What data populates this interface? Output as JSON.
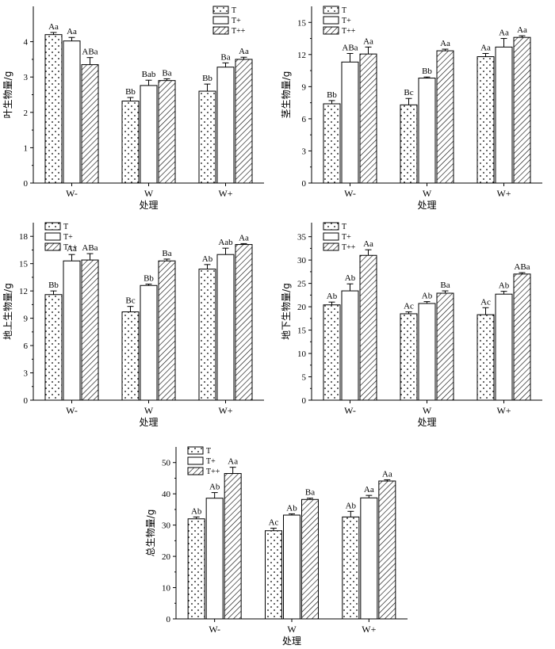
{
  "chart_data": [
    {
      "type": "bar",
      "ylabel": "叶生物量/g",
      "xlabel": "处理",
      "ylim": [
        0,
        5
      ],
      "yticks": [
        0,
        1,
        2,
        3,
        4
      ],
      "categories": [
        "W-",
        "W",
        "W+"
      ],
      "legend_position": "top-right",
      "series": [
        {
          "name": "T",
          "values": [
            4.2,
            2.32,
            2.6
          ],
          "errors": [
            0.06,
            0.1,
            0.2
          ],
          "labels": [
            "Aa",
            "Bb",
            "Bb"
          ]
        },
        {
          "name": "T+",
          "values": [
            4.02,
            2.76,
            3.28
          ],
          "errors": [
            0.1,
            0.15,
            0.12
          ],
          "labels": [
            "Aa",
            "Bab",
            "Ba"
          ]
        },
        {
          "name": "T++",
          "values": [
            3.35,
            2.9,
            3.5
          ],
          "errors": [
            0.2,
            0.05,
            0.06
          ],
          "labels": [
            "ABa",
            "Ba",
            "Aa"
          ]
        }
      ]
    },
    {
      "type": "bar",
      "ylabel": "茎生物量/g",
      "xlabel": "处理",
      "ylim": [
        0,
        16.5
      ],
      "yticks": [
        0,
        3,
        6,
        9,
        12,
        15
      ],
      "categories": [
        "W-",
        "W",
        "W+"
      ],
      "legend_position": "top-left",
      "series": [
        {
          "name": "T",
          "values": [
            7.4,
            7.3,
            11.8
          ],
          "errors": [
            0.3,
            0.6,
            0.3
          ],
          "labels": [
            "Bb",
            "Bc",
            "Aa"
          ]
        },
        {
          "name": "T+",
          "values": [
            11.3,
            9.8,
            12.7
          ],
          "errors": [
            0.8,
            0.1,
            0.8
          ],
          "labels": [
            "ABa",
            "Bb",
            "Aa"
          ]
        },
        {
          "name": "T++",
          "values": [
            12.05,
            12.35,
            13.6
          ],
          "errors": [
            0.65,
            0.15,
            0.15
          ],
          "labels": [
            "Aa",
            "Aa",
            "Aa"
          ]
        }
      ]
    },
    {
      "type": "bar",
      "ylabel": "地上生物量/g",
      "xlabel": "处理",
      "ylim": [
        0,
        19.5
      ],
      "yticks": [
        0,
        3,
        6,
        9,
        12,
        15,
        18
      ],
      "categories": [
        "W-",
        "W",
        "W+"
      ],
      "legend_position": "top-left",
      "series": [
        {
          "name": "T",
          "values": [
            11.6,
            9.7,
            14.4
          ],
          "errors": [
            0.4,
            0.6,
            0.5
          ],
          "labels": [
            "Bb",
            "Bc",
            "Ab"
          ]
        },
        {
          "name": "T+",
          "values": [
            15.3,
            12.6,
            16.0
          ],
          "errors": [
            0.7,
            0.15,
            0.7
          ],
          "labels": [
            "Aa",
            "Bb",
            "Aab"
          ]
        },
        {
          "name": "T++",
          "values": [
            15.4,
            15.3,
            17.1
          ],
          "errors": [
            0.7,
            0.2,
            0.1
          ],
          "labels": [
            "ABa",
            "Ba",
            "Aa"
          ]
        }
      ]
    },
    {
      "type": "bar",
      "ylabel": "地下生物量/g",
      "xlabel": "处理",
      "ylim": [
        0,
        38
      ],
      "yticks": [
        0,
        5,
        10,
        15,
        20,
        25,
        30,
        35
      ],
      "categories": [
        "W-",
        "W",
        "W+"
      ],
      "legend_position": "top-left",
      "series": [
        {
          "name": "T",
          "values": [
            20.4,
            18.5,
            18.3
          ],
          "errors": [
            0.6,
            0.4,
            1.5
          ],
          "labels": [
            "Ab",
            "Ac",
            "Ac"
          ]
        },
        {
          "name": "T+",
          "values": [
            23.4,
            20.7,
            22.7
          ],
          "errors": [
            1.5,
            0.4,
            0.6
          ],
          "labels": [
            "Ab",
            "Ab",
            "Ab"
          ]
        },
        {
          "name": "T++",
          "values": [
            31.0,
            22.9,
            27.0
          ],
          "errors": [
            1.2,
            0.5,
            0.3
          ],
          "labels": [
            "Aa",
            "Ba",
            "ABa"
          ]
        }
      ]
    },
    {
      "type": "bar",
      "ylabel": "总生物量/g",
      "xlabel": "处理",
      "ylim": [
        0,
        55
      ],
      "yticks": [
        0,
        10,
        20,
        30,
        40,
        50
      ],
      "categories": [
        "W-",
        "W",
        "W+"
      ],
      "legend_position": "top-left",
      "series": [
        {
          "name": "T",
          "values": [
            32.0,
            28.2,
            32.6
          ],
          "errors": [
            0.6,
            0.8,
            1.8
          ],
          "labels": [
            "Ab",
            "Ac",
            "Ab"
          ]
        },
        {
          "name": "T+",
          "values": [
            38.6,
            33.2,
            38.7
          ],
          "errors": [
            1.8,
            0.4,
            0.8
          ],
          "labels": [
            "Ab",
            "Ab",
            "Aa"
          ]
        },
        {
          "name": "T++",
          "values": [
            46.5,
            38.2,
            44.1
          ],
          "errors": [
            2.0,
            0.4,
            0.4
          ],
          "labels": [
            "Aa",
            "Ba",
            "Aa"
          ]
        }
      ]
    }
  ]
}
